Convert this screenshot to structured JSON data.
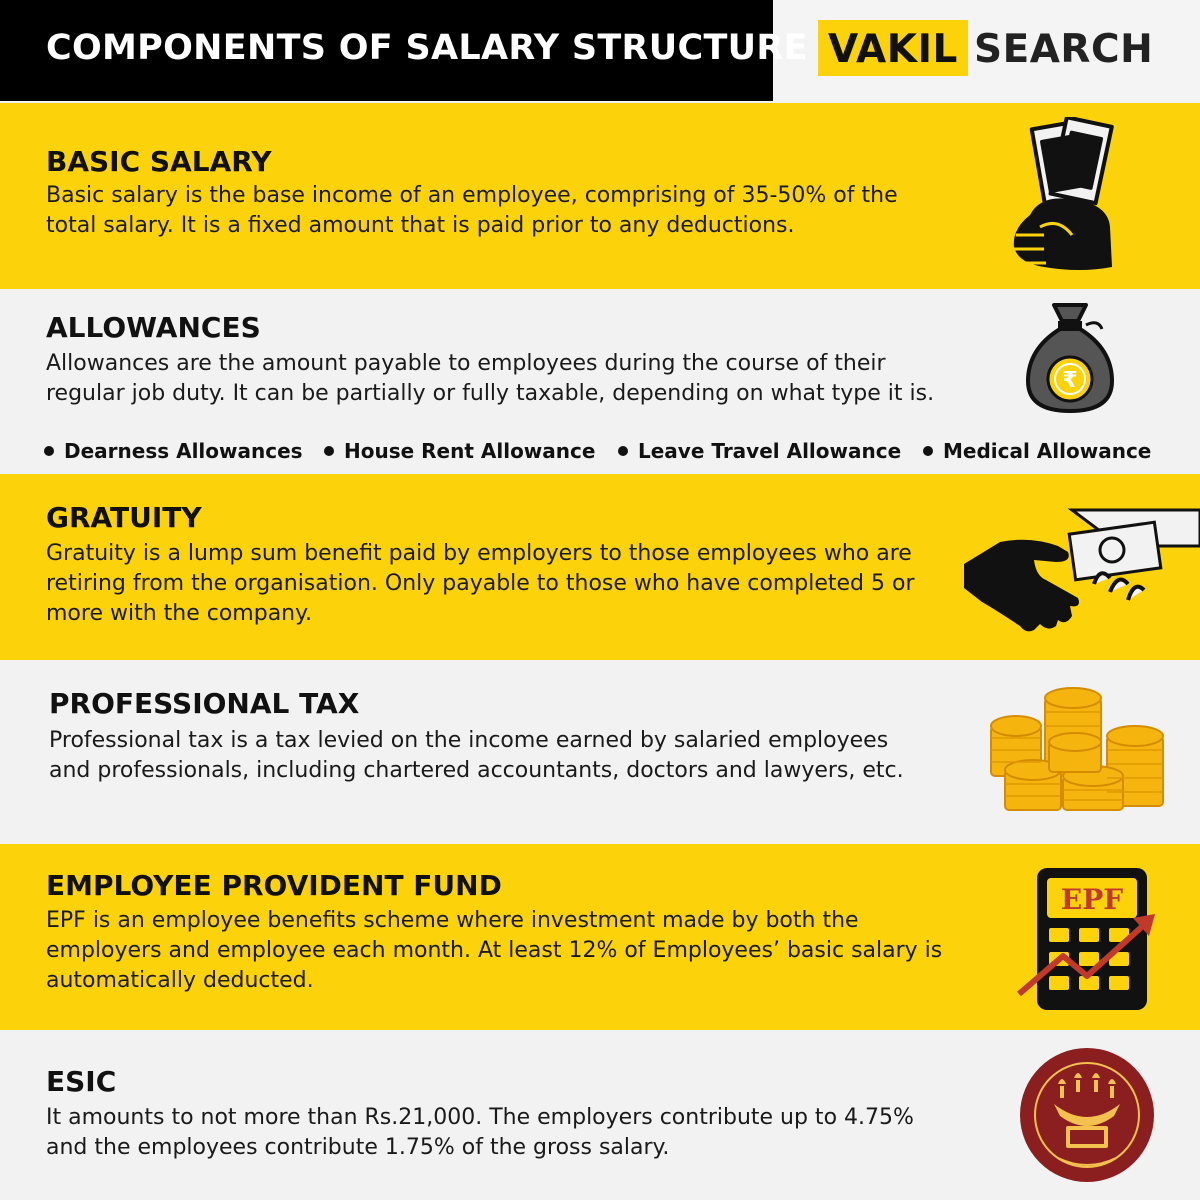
{
  "header": {
    "title": "COMPONENTS OF SALARY STRUCTURE",
    "logo_part1": "VAKIL",
    "logo_part2": "SEARCH"
  },
  "sections": [
    {
      "title": "BASIC SALARY",
      "text": "Basic salary is the base income of an employee, comprising of 35-50% of the total salary. It is a fixed amount that is paid prior to any deductions.",
      "icon": "hand-holding-cash-icon"
    },
    {
      "title": "ALLOWANCES",
      "text": "Allowances are the amount payable to employees during the course of their regular job duty. It can be partially or fully taxable, depending on what type it is.",
      "icon": "money-bag-icon",
      "bullets": [
        "Dearness Allowances",
        "House Rent Allowance",
        "Leave Travel Allowance",
        "Medical Allowance"
      ]
    },
    {
      "title": "GRATUITY",
      "text": "Gratuity is a lump sum benefit paid by employers to those employees who are retiring from the organisation. Only payable to those who have completed 5 or more with the company.",
      "icon": "hands-exchanging-money-icon"
    },
    {
      "title": "PROFESSIONAL TAX",
      "text": "Professional tax is a tax levied on the income earned by salaried employees and professionals, including chartered accountants, doctors and lawyers, etc.",
      "icon": "coin-stacks-icon"
    },
    {
      "title": "EMPLOYEE PROVIDENT FUND",
      "text": "EPF is an employee benefits scheme where investment made by both the employers and employee each month. At least 12% of Employees’ basic salary is automatically deducted.",
      "icon": "epf-calculator-icon",
      "icon_label": "EPF"
    },
    {
      "title": "ESIC",
      "text": "It amounts to not more than Rs.21,000. The employers contribute up to 4.75% and the employees contribute 1.75% of the gross salary.",
      "icon": "esic-seal-icon"
    }
  ],
  "colors": {
    "accent_yellow": "#fcd20a",
    "header_black": "#000000",
    "band_grey": "#f2f2f2",
    "esic_maroon": "#8b1e1e"
  }
}
